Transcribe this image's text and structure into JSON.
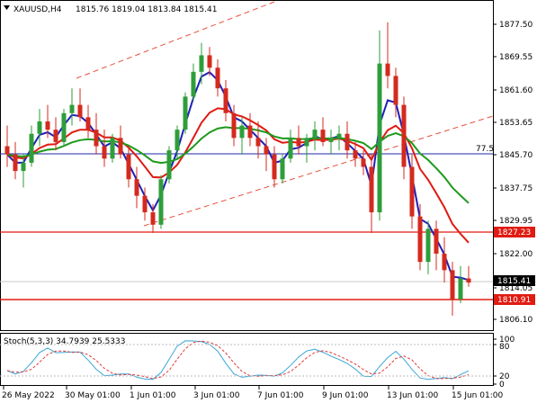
{
  "header": {
    "symbol_timeframe": "XAUUSD,H4",
    "ohlc": "1815.76 1819.04 1813.84 1815.41"
  },
  "price_axis": {
    "ticks": [
      "1877.50",
      "1869.55",
      "1861.60",
      "1853.65",
      "1845.70",
      "1837.75",
      "1829.95",
      "1822.00",
      "1814.05",
      "1806.10"
    ]
  },
  "price_labels": {
    "current": "1815.41",
    "upper_level": "1827.23",
    "lower_level": "1810.91",
    "line_label": "77.5"
  },
  "stoch": {
    "title": "Stoch(5,3,3) 34.7939 25.5333",
    "ticks": [
      "100",
      "80",
      "20",
      "0"
    ]
  },
  "time_axis": {
    "labels": [
      "26 May 2022",
      "30 May 01:00",
      "1 Jun 01:00",
      "3 Jun 01:00",
      "7 Jun 01:00",
      "9 Jun 01:00",
      "13 Jun 01:00",
      "15 Jun 01:00"
    ]
  },
  "colors": {
    "bull_candle": "#2e9e3a",
    "bear_candle": "#d42a1e",
    "ma_fast": "#1f1fb8",
    "ma_mid": "#e01b12",
    "ma_slow": "#1c9a1c",
    "horizontal_level": "#e01b12",
    "blue_hline": "#1b2aa8",
    "channel": "#e8513e",
    "stoch_main": "#3aa6d8",
    "stoch_signal": "#e03a3a"
  },
  "chart_data": {
    "type": "candlestick",
    "instrument": "XAUUSD",
    "timeframe": "H4",
    "levels": [
      1827.23,
      1810.91,
      1815.41
    ],
    "candles": [
      [
        1848,
        1853,
        1843,
        1846
      ],
      [
        1846,
        1849,
        1840,
        1842
      ],
      [
        1842,
        1846,
        1838,
        1844
      ],
      [
        1844,
        1853,
        1843,
        1851
      ],
      [
        1851,
        1857,
        1848,
        1854
      ],
      [
        1854,
        1858,
        1850,
        1852
      ],
      [
        1852,
        1855,
        1847,
        1849
      ],
      [
        1849,
        1857,
        1848,
        1856
      ],
      [
        1856,
        1862,
        1853,
        1858
      ],
      [
        1858,
        1862,
        1854,
        1855
      ],
      [
        1855,
        1858,
        1850,
        1852
      ],
      [
        1852,
        1856,
        1846,
        1848
      ],
      [
        1848,
        1852,
        1843,
        1845
      ],
      [
        1845,
        1851,
        1844,
        1850
      ],
      [
        1850,
        1853,
        1845,
        1846
      ],
      [
        1846,
        1848,
        1838,
        1840
      ],
      [
        1840,
        1843,
        1833,
        1836
      ],
      [
        1836,
        1838,
        1830,
        1832
      ],
      [
        1832,
        1834,
        1827,
        1829
      ],
      [
        1829,
        1841,
        1828,
        1840
      ],
      [
        1840,
        1848,
        1839,
        1847
      ],
      [
        1847,
        1853,
        1845,
        1852
      ],
      [
        1852,
        1861,
        1851,
        1860
      ],
      [
        1860,
        1868,
        1859,
        1866
      ],
      [
        1866,
        1873,
        1863,
        1870
      ],
      [
        1870,
        1872,
        1865,
        1867
      ],
      [
        1867,
        1869,
        1860,
        1862
      ],
      [
        1862,
        1864,
        1854,
        1856
      ],
      [
        1856,
        1858,
        1848,
        1850
      ],
      [
        1850,
        1855,
        1846,
        1853
      ],
      [
        1853,
        1856,
        1848,
        1850
      ],
      [
        1850,
        1854,
        1845,
        1848
      ],
      [
        1848,
        1850,
        1842,
        1846
      ],
      [
        1846,
        1848,
        1838,
        1840
      ],
      [
        1840,
        1846,
        1839,
        1845
      ],
      [
        1845,
        1852,
        1844,
        1850
      ],
      [
        1850,
        1853,
        1846,
        1848
      ],
      [
        1848,
        1851,
        1844,
        1850
      ],
      [
        1850,
        1854,
        1847,
        1852
      ],
      [
        1852,
        1855,
        1848,
        1849
      ],
      [
        1849,
        1852,
        1846,
        1850
      ],
      [
        1850,
        1853,
        1847,
        1851
      ],
      [
        1851,
        1854,
        1845,
        1847
      ],
      [
        1847,
        1849,
        1843,
        1845
      ],
      [
        1845,
        1847,
        1841,
        1843
      ],
      [
        1843,
        1846,
        1827,
        1832
      ],
      [
        1832,
        1876,
        1830,
        1868
      ],
      [
        1868,
        1878,
        1862,
        1865
      ],
      [
        1865,
        1867,
        1855,
        1858
      ],
      [
        1858,
        1860,
        1840,
        1843
      ],
      [
        1843,
        1846,
        1828,
        1831
      ],
      [
        1831,
        1834,
        1818,
        1820
      ],
      [
        1820,
        1830,
        1817,
        1828
      ],
      [
        1828,
        1830,
        1818,
        1822
      ],
      [
        1822,
        1826,
        1815,
        1818
      ],
      [
        1818,
        1820,
        1807,
        1811
      ],
      [
        1811,
        1819,
        1810,
        1816
      ],
      [
        1816,
        1819,
        1814,
        1815
      ]
    ],
    "stochastic": {
      "title": "Stoch(5,3,3)",
      "main": 34.7939,
      "signal": 25.5333,
      "levels": [
        80,
        20
      ]
    }
  }
}
